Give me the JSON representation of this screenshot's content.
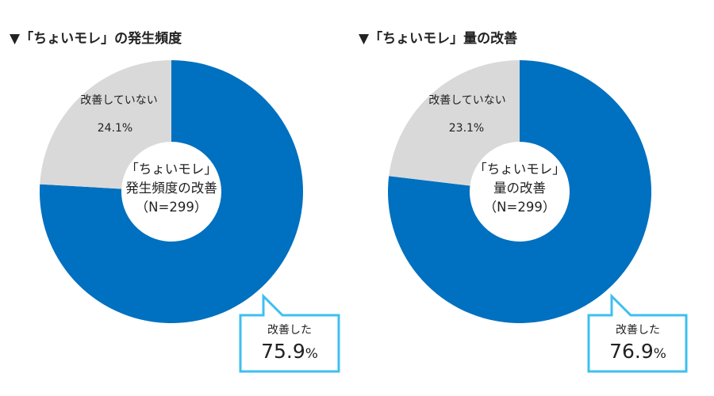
{
  "chart_data": [
    {
      "type": "pie",
      "title": "▼「ちょいモレ」の発生頻度",
      "center_label": [
        "「ちょいモレ」",
        "発生頻度の改善",
        "（N=299）"
      ],
      "slices": [
        {
          "label": "改善した",
          "value": 75.9,
          "display": "75.9",
          "unit": "%",
          "color": "#0070c0"
        },
        {
          "label": "改善していない",
          "value": 24.1,
          "display": "24.1%",
          "color": "#d9d9d9"
        }
      ],
      "callout_border": "#3fbfef"
    },
    {
      "type": "pie",
      "title": "▼「ちょいモレ」量の改善",
      "center_label": [
        "「ちょいモレ」",
        "量の改善",
        "（N=299）"
      ],
      "slices": [
        {
          "label": "改善した",
          "value": 76.9,
          "display": "76.9",
          "unit": "%",
          "color": "#0070c0"
        },
        {
          "label": "改善していない",
          "value": 23.1,
          "display": "23.1%",
          "color": "#d9d9d9"
        }
      ],
      "callout_border": "#3fbfef"
    }
  ]
}
